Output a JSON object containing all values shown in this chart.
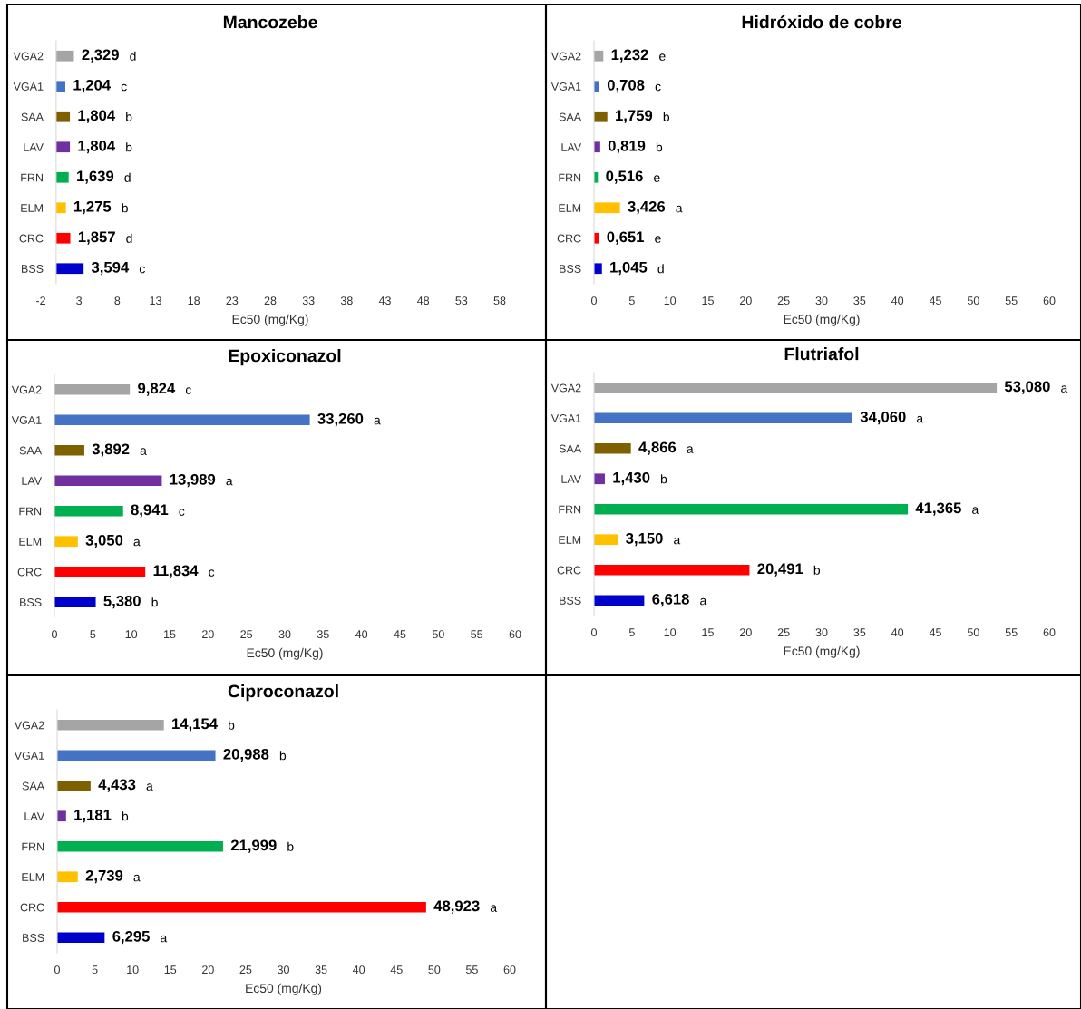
{
  "chart_data": [
    {
      "type": "bar",
      "orientation": "horizontal",
      "title": "Mancozebe",
      "xlabel": "Ec50 (mg/Kg)",
      "categories": [
        "VGA2",
        "VGA1",
        "SAA",
        "LAV",
        "FRN",
        "ELM",
        "CRC",
        "BSS"
      ],
      "values": [
        2.329,
        1.204,
        1.804,
        1.804,
        1.639,
        1.275,
        1.857,
        3.594
      ],
      "value_labels": [
        "2,329",
        "1,204",
        "1,804",
        "1,804",
        "1,639",
        "1,275",
        "1,857",
        "3,594"
      ],
      "colors": [
        "#a5a5a5",
        "#4472c4",
        "#7f6000",
        "#7030a0",
        "#00b050",
        "#ffc000",
        "#ff0000",
        "#0000cc"
      ],
      "xlim": [
        -2,
        58
      ],
      "xticks": [
        -2,
        3,
        8,
        13,
        18,
        23,
        28,
        33,
        38,
        43,
        48,
        53,
        58
      ],
      "grid": false,
      "annotations": [
        "d",
        "c",
        "b",
        "b",
        "d",
        "b",
        "d",
        "c"
      ]
    },
    {
      "type": "bar",
      "orientation": "horizontal",
      "title": "Hidróxido de cobre",
      "xlabel": "Ec50 (mg/Kg)",
      "categories": [
        "VGA2",
        "VGA1",
        "SAA",
        "LAV",
        "FRN",
        "ELM",
        "CRC",
        "BSS"
      ],
      "values": [
        1.232,
        0.708,
        1.759,
        0.819,
        0.516,
        3.426,
        0.651,
        1.045
      ],
      "value_labels": [
        "1,232",
        "0,708",
        "1,759",
        "0,819",
        "0,516",
        "3,426",
        "0,651",
        "1,045"
      ],
      "colors": [
        "#a5a5a5",
        "#4472c4",
        "#7f6000",
        "#7030a0",
        "#00b050",
        "#ffc000",
        "#ff0000",
        "#0000cc"
      ],
      "xlim": [
        0,
        60
      ],
      "xticks": [
        0,
        5,
        10,
        15,
        20,
        25,
        30,
        35,
        40,
        45,
        50,
        55,
        60
      ],
      "grid": false,
      "annotations": [
        "e",
        "c",
        "b",
        "b",
        "e",
        "a",
        "e",
        "d"
      ]
    },
    {
      "type": "bar",
      "orientation": "horizontal",
      "title": "Epoxiconazol",
      "xlabel": "Ec50 (mg/Kg)",
      "categories": [
        "VGA2",
        "VGA1",
        "SAA",
        "LAV",
        "FRN",
        "ELM",
        "CRC",
        "BSS"
      ],
      "values": [
        9.824,
        33.26,
        3.892,
        13.989,
        8.941,
        3.05,
        11.834,
        5.38
      ],
      "value_labels": [
        "9,824",
        "33,260",
        "3,892",
        "13,989",
        "8,941",
        "3,050",
        "11,834",
        "5,380"
      ],
      "colors": [
        "#a5a5a5",
        "#4472c4",
        "#7f6000",
        "#7030a0",
        "#00b050",
        "#ffc000",
        "#ff0000",
        "#0000cc"
      ],
      "xlim": [
        0,
        60
      ],
      "xticks": [
        0,
        5,
        10,
        15,
        20,
        25,
        30,
        35,
        40,
        45,
        50,
        55,
        60
      ],
      "grid": false,
      "annotations": [
        "c",
        "a",
        "a",
        "a",
        "c",
        "a",
        "c",
        "b"
      ]
    },
    {
      "type": "bar",
      "orientation": "horizontal",
      "title": "Flutriafol",
      "xlabel": "Ec50 (mg/Kg)",
      "categories": [
        "VGA2",
        "VGA1",
        "SAA",
        "LAV",
        "FRN",
        "ELM",
        "CRC",
        "BSS"
      ],
      "values": [
        53.08,
        34.06,
        4.866,
        1.43,
        41.365,
        3.15,
        20.491,
        6.618
      ],
      "value_labels": [
        "53,080",
        "34,060",
        "4,866",
        "1,430",
        "41,365",
        "3,150",
        "20,491",
        "6,618"
      ],
      "colors": [
        "#a5a5a5",
        "#4472c4",
        "#7f6000",
        "#7030a0",
        "#00b050",
        "#ffc000",
        "#ff0000",
        "#0000cc"
      ],
      "xlim": [
        0,
        60
      ],
      "xticks": [
        0,
        5,
        10,
        15,
        20,
        25,
        30,
        35,
        40,
        45,
        50,
        55,
        60
      ],
      "grid": false,
      "annotations": [
        "a",
        "a",
        "a",
        "b",
        "a",
        "a",
        "b",
        "a"
      ]
    },
    {
      "type": "bar",
      "orientation": "horizontal",
      "title": "Ciproconazol",
      "xlabel": "Ec50 (mg/Kg)",
      "categories": [
        "VGA2",
        "VGA1",
        "SAA",
        "LAV",
        "FRN",
        "ELM",
        "CRC",
        "BSS"
      ],
      "values": [
        14.154,
        20.988,
        4.433,
        1.181,
        21.999,
        2.739,
        48.923,
        6.295
      ],
      "value_labels": [
        "14,154",
        "20,988",
        "4,433",
        "1,181",
        "21,999",
        "2,739",
        "48,923",
        "6,295"
      ],
      "colors": [
        "#a5a5a5",
        "#4472c4",
        "#7f6000",
        "#7030a0",
        "#00b050",
        "#ffc000",
        "#ff0000",
        "#0000cc"
      ],
      "xlim": [
        0,
        60
      ],
      "xticks": [
        0,
        5,
        10,
        15,
        20,
        25,
        30,
        35,
        40,
        45,
        50,
        55,
        60
      ],
      "grid": false,
      "annotations": [
        "b",
        "b",
        "a",
        "b",
        "b",
        "a",
        "a",
        "a"
      ]
    }
  ]
}
